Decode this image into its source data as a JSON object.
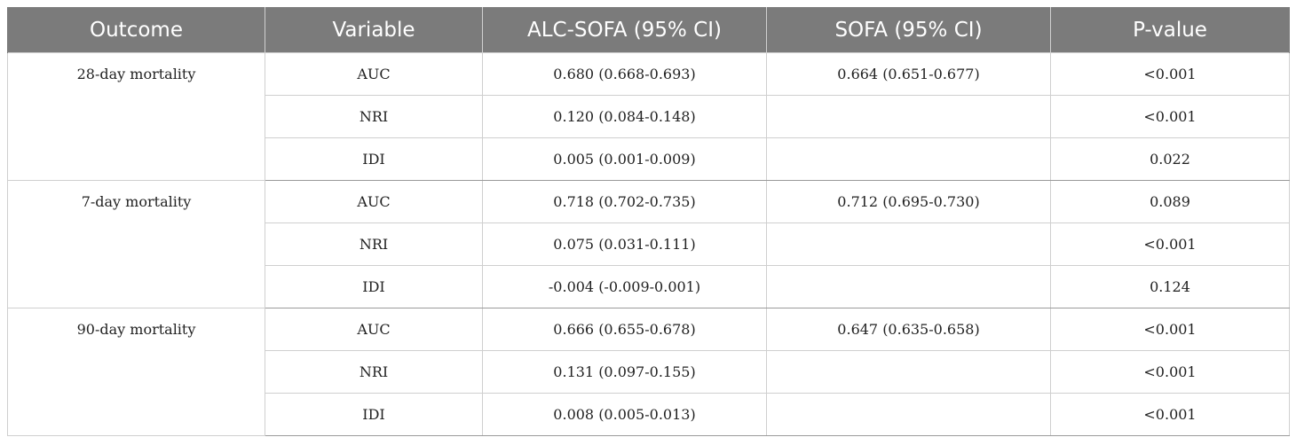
{
  "table": {
    "headers": [
      "Outcome",
      "Variable",
      "ALC-SOFA (95% CI)",
      "SOFA (95% CI)",
      "P-value"
    ],
    "groups": [
      {
        "outcome": "28-day mortality",
        "rows": [
          {
            "variable": "AUC",
            "alc_sofa": "0.680 (0.668-0.693)",
            "sofa": "0.664 (0.651-0.677)",
            "p_value": "<0.001"
          },
          {
            "variable": "NRI",
            "alc_sofa": "0.120 (0.084-0.148)",
            "sofa": "",
            "p_value": "<0.001"
          },
          {
            "variable": "IDI",
            "alc_sofa": "0.005 (0.001-0.009)",
            "sofa": "",
            "p_value": "0.022"
          }
        ]
      },
      {
        "outcome": "7-day mortality",
        "rows": [
          {
            "variable": "AUC",
            "alc_sofa": "0.718 (0.702-0.735)",
            "sofa": "0.712 (0.695-0.730)",
            "p_value": "0.089"
          },
          {
            "variable": "NRI",
            "alc_sofa": "0.075 (0.031-0.111)",
            "sofa": "",
            "p_value": "<0.001"
          },
          {
            "variable": "IDI",
            "alc_sofa": "-0.004 (-0.009-0.001)",
            "sofa": "",
            "p_value": "0.124"
          }
        ]
      },
      {
        "outcome": "90-day mortality",
        "rows": [
          {
            "variable": "AUC",
            "alc_sofa": "0.666 (0.655-0.678)",
            "sofa": "0.647 (0.635-0.658)",
            "p_value": "<0.001"
          },
          {
            "variable": "NRI",
            "alc_sofa": "0.131 (0.097-0.155)",
            "sofa": "",
            "p_value": "<0.001"
          },
          {
            "variable": "IDI",
            "alc_sofa": "0.008 (0.005-0.013)",
            "sofa": "",
            "p_value": "<0.001"
          }
        ]
      }
    ]
  }
}
